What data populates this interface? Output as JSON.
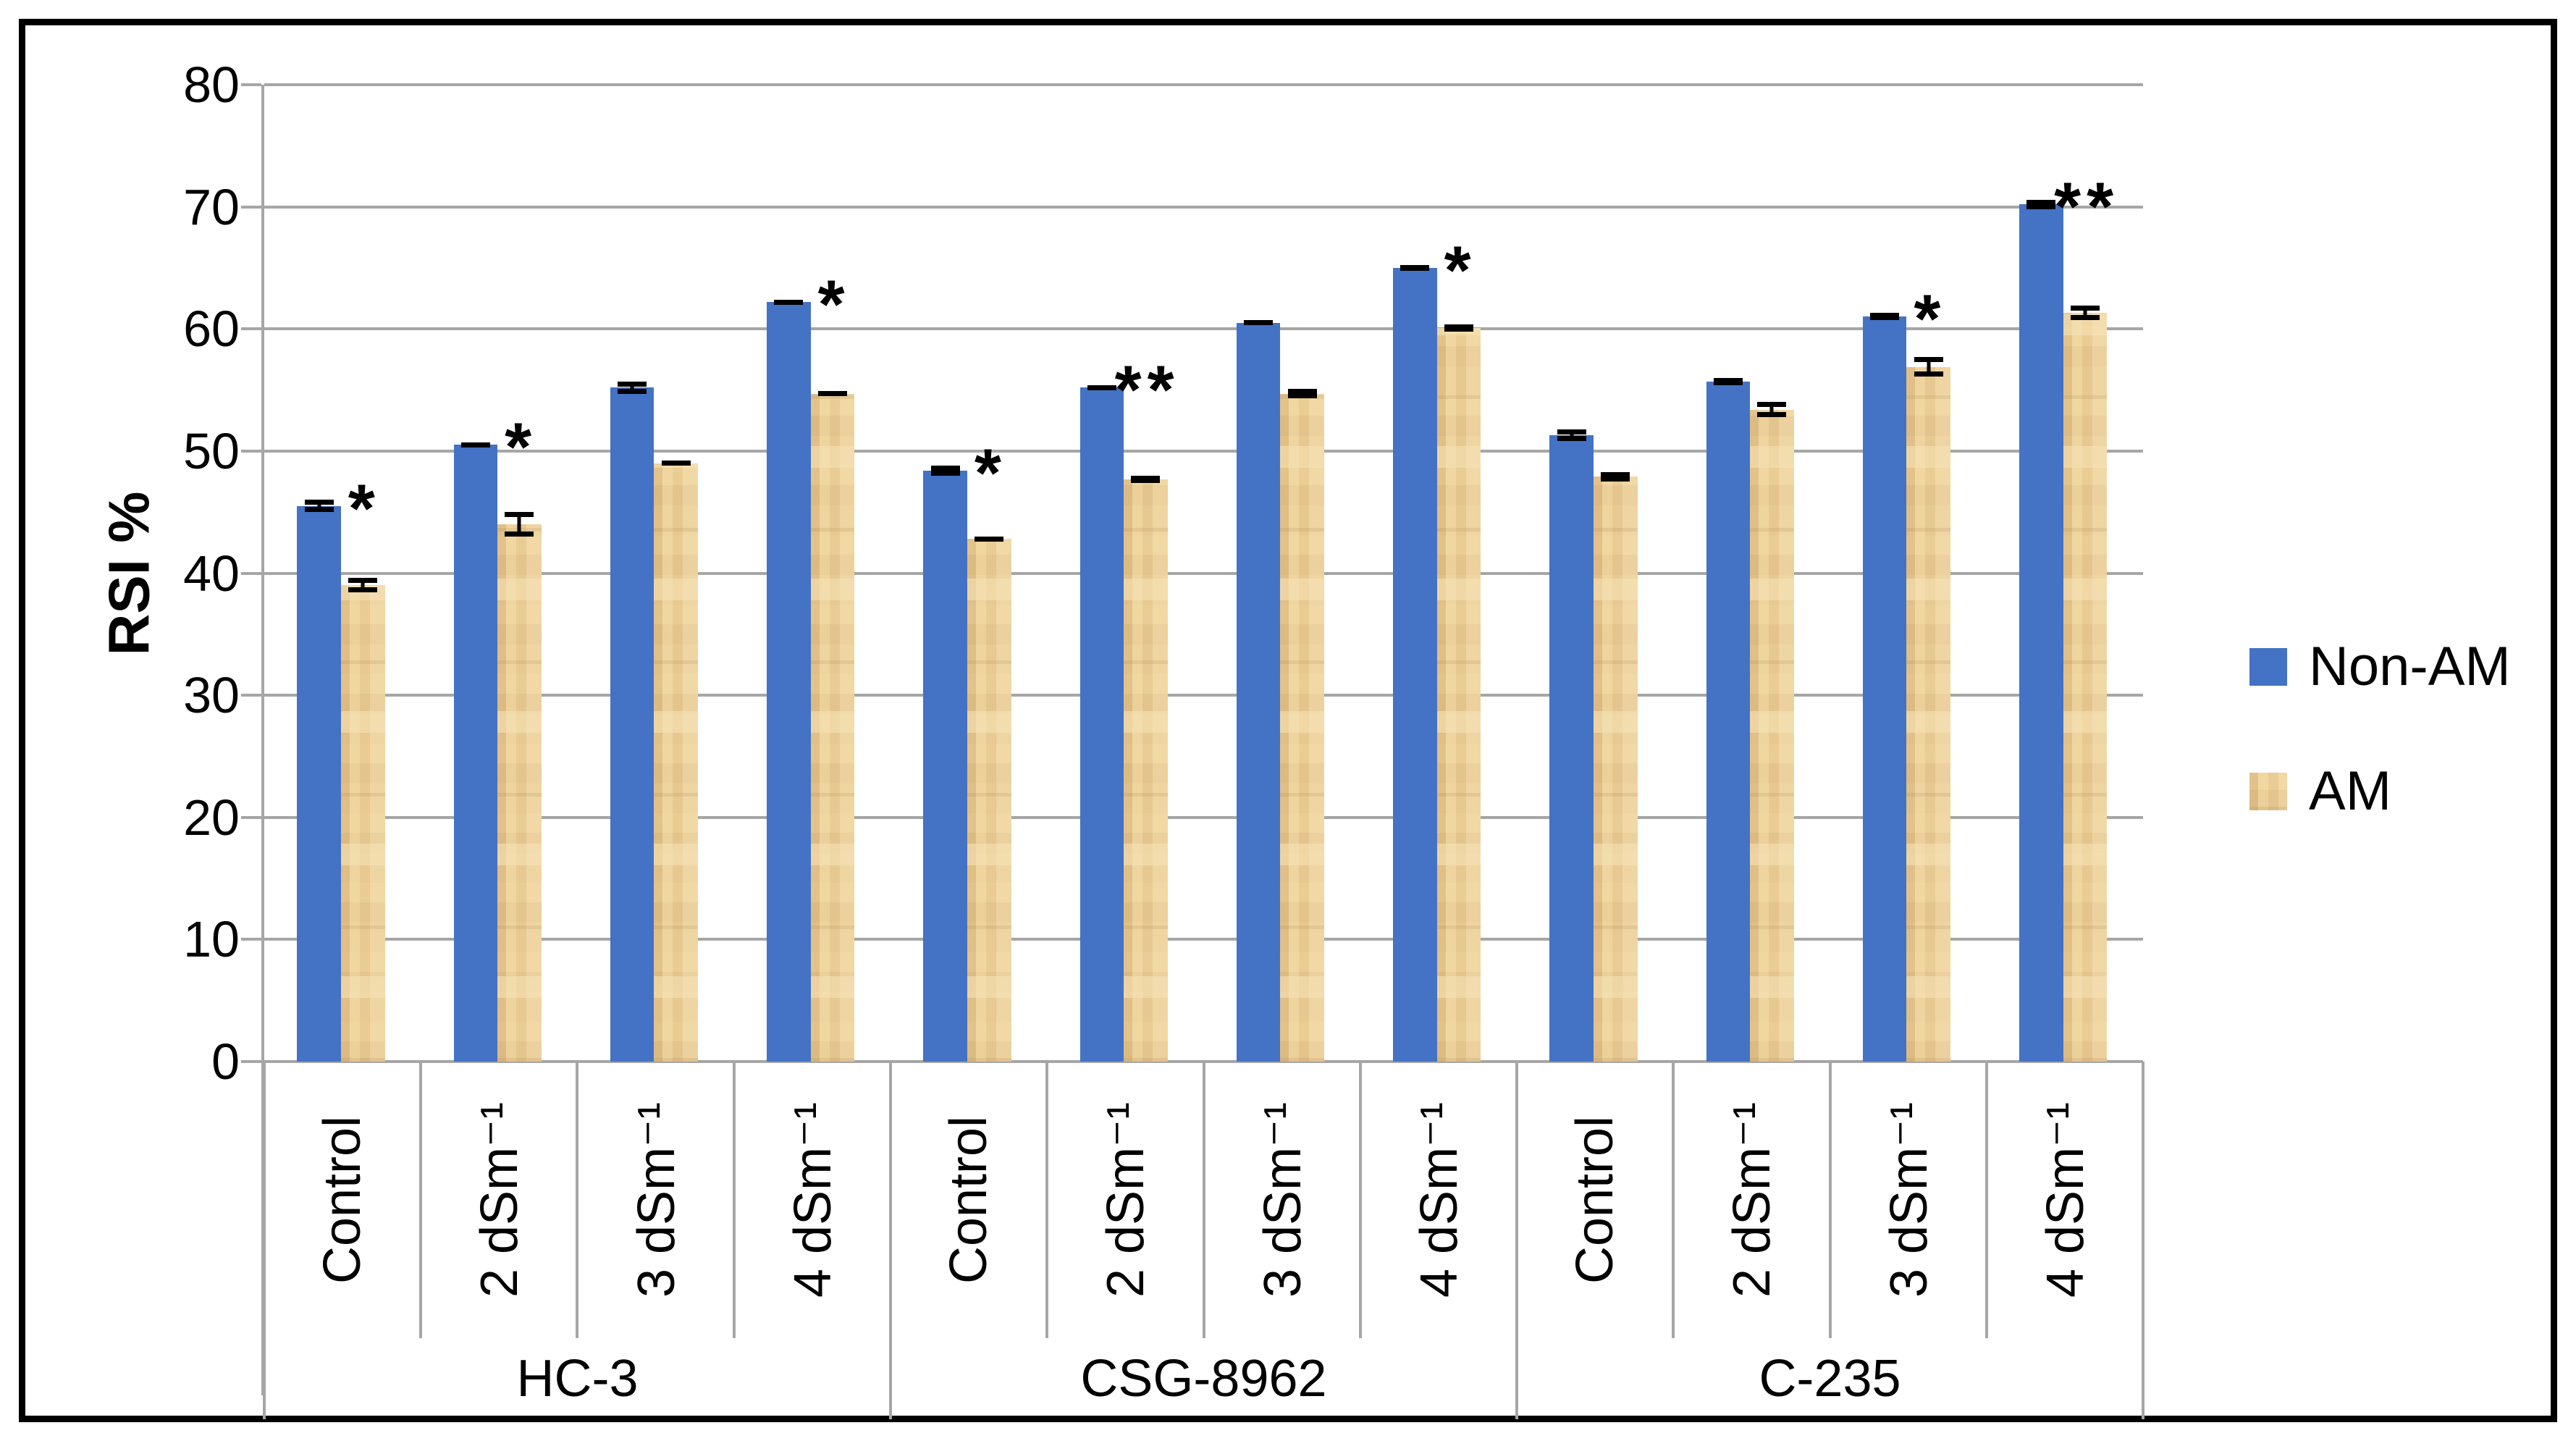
{
  "figure": {
    "background": "#ffffff",
    "border_color": "#000000"
  },
  "axes": {
    "y_title": "RSI %",
    "y_tick_labels": [
      "0",
      "10",
      "20",
      "30",
      "40",
      "50",
      "60",
      "70",
      "80"
    ],
    "grid_color": "#a6a6a6",
    "axis_color": "#a6a6a6",
    "text_color": "#000000"
  },
  "legend": {
    "position": "right",
    "items": [
      {
        "label": "Non-AM",
        "swatch": "non-am",
        "color": "#4472c4"
      },
      {
        "label": "AM",
        "swatch": "am",
        "color": "#eccf97"
      }
    ]
  },
  "chart_data": {
    "type": "bar",
    "title": "",
    "xlabel": "",
    "ylabel": "RSI %",
    "ylim": [
      0,
      80
    ],
    "ytick_step": 10,
    "grid": "horizontal",
    "legend_position": "right",
    "groups": [
      {
        "label": "HC-3",
        "categories": [
          "Control",
          "2 dSm⁻¹",
          "3 dSm⁻¹",
          "4 dSm⁻¹"
        ]
      },
      {
        "label": "CSG-8962",
        "categories": [
          "Control",
          "2 dSm⁻¹",
          "3 dSm⁻¹",
          "4 dSm⁻¹"
        ]
      },
      {
        "label": "C-235",
        "categories": [
          "Control",
          "2 dSm⁻¹",
          "3 dSm⁻¹",
          "4 dSm⁻¹"
        ]
      }
    ],
    "series": [
      {
        "name": "Non-AM",
        "color": "#4472c4",
        "values": [
          45.5,
          50.5,
          55.2,
          62.2,
          48.4,
          55.2,
          60.5,
          65.0,
          51.3,
          55.7,
          61.0,
          70.2
        ],
        "errors": [
          0.5,
          0.2,
          0.5,
          0.2,
          0.4,
          0.2,
          0.2,
          0.2,
          0.5,
          0.3,
          0.3,
          0.4
        ]
      },
      {
        "name": "AM",
        "color": "#eccf97",
        "values": [
          39.0,
          44.0,
          49.0,
          54.7,
          42.8,
          47.7,
          54.7,
          60.1,
          47.9,
          53.4,
          56.9,
          61.3
        ],
        "errors": [
          0.6,
          1.0,
          0.2,
          0.2,
          0.2,
          0.3,
          0.4,
          0.3,
          0.4,
          0.6,
          0.8,
          0.6
        ]
      }
    ],
    "significance_markers": [
      "*",
      "*",
      "",
      "*",
      "*",
      "**",
      "",
      "*",
      "",
      "",
      "*",
      "**"
    ]
  }
}
